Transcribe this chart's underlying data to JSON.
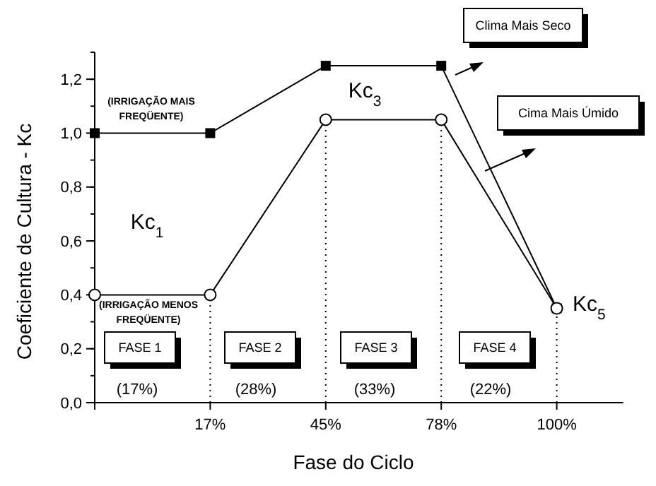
{
  "chart_data": {
    "type": "line",
    "xlabel": "Fase do Ciclo",
    "ylabel": "Coeficiente de Cultura - Kc",
    "categories": [
      null,
      "17%",
      "45%",
      "78%",
      "100%"
    ],
    "ylim": [
      0,
      1.3
    ],
    "yticks": [
      {
        "value": 0,
        "label": "0,0"
      },
      {
        "value": 0.2,
        "label": "0,2"
      },
      {
        "value": 0.4,
        "label": "0,4"
      },
      {
        "value": 0.6,
        "label": "0,6"
      },
      {
        "value": 0.8,
        "label": "0,8"
      },
      {
        "value": 1,
        "label": "1,0"
      },
      {
        "value": 1.2,
        "label": "1,2"
      }
    ],
    "series": [
      {
        "color": "#000000",
        "marker": "square",
        "values": [
          1.0,
          1.0,
          1.25,
          1.25,
          0.35
        ]
      },
      {
        "color": "#000000",
        "marker": "circle",
        "values": [
          0.4,
          0.4,
          1.05,
          1.05,
          0.35
        ]
      }
    ],
    "ref_lines": [
      {
        "axis": "x",
        "value": "17%",
        "line_style": "dotted"
      },
      {
        "axis": "x",
        "value": "45%",
        "line_style": "dotted"
      },
      {
        "axis": "x",
        "value": "78%",
        "line_style": "dotted"
      },
      {
        "axis": "x",
        "value": "100%",
        "line_style": "dotted"
      }
    ],
    "grid": false,
    "line_style": "solid",
    "annotations": [
      "(IRRIGAÇÃO MAIS FREQÜENTE)",
      "(IRRIGAÇÃO MENOS FREQÜENTE)",
      "Kc$_{1}$",
      "Kc$_{3}$",
      "Kc$_{5}$",
      "Clima Mais Seco",
      "Cima Mais Úmido",
      "FASE 1",
      "FASE 2",
      "FASE 3",
      "FASE 4",
      "(17%)",
      "(28%)",
      "(33%)",
      "(22%)"
    ]
  }
}
